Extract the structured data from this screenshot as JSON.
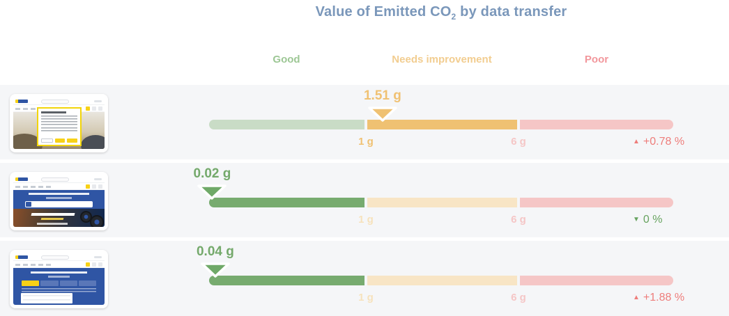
{
  "title": {
    "text_before_sub": "Value of Emitted CO",
    "sub": "2",
    "text_after_sub": " by data transfer"
  },
  "bands": {
    "good": "Good",
    "needs_improvement": "Needs improvement",
    "poor": "Poor"
  },
  "colors": {
    "title": "#7a97ba",
    "band_good_label": "#9dc795",
    "band_needs_label": "#f2cd90",
    "band_poor_label": "#f2979c",
    "good_active": "#77ab6f",
    "good_muted": "#c9dcc6",
    "needs_active": "#efc172",
    "needs_muted": "#f8e5c5",
    "poor_muted": "#f5c6c6",
    "change_up_red": "#ee7d7b",
    "change_down_green": "#67a35f",
    "row_background": "#f5f6f8"
  },
  "chart_data": {
    "type": "bullet",
    "title": "Value of Emitted CO2 by data transfer",
    "unit": "g",
    "bands": [
      {
        "name": "Good",
        "range_g": [
          0,
          1
        ]
      },
      {
        "name": "Needs improvement",
        "range_g": [
          1,
          6
        ]
      },
      {
        "name": "Poor",
        "range_g": [
          6,
          null
        ]
      }
    ],
    "scale": {
      "good_max": 1,
      "poor_min": 6
    },
    "tick_labels": {
      "low": "1 g",
      "high": "6 g"
    },
    "rows": [
      {
        "thumbnail": "michelin-page-with-cookie-consent-modal",
        "value_g": 1.51,
        "value_label": "1.51 g",
        "status": "needs_improvement",
        "change": {
          "direction": "up",
          "arrow": "▲",
          "label": "+0.78 %",
          "color": "red"
        }
      },
      {
        "thumbnail": "michelin-homepage-hero",
        "value_g": 0.02,
        "value_label": "0.02 g",
        "status": "good",
        "change": {
          "direction": "down",
          "arrow": "▼",
          "label": "0 %",
          "color": "green"
        }
      },
      {
        "thumbnail": "michelin-tire-selector-page",
        "value_g": 0.04,
        "value_label": "0.04 g",
        "status": "good",
        "change": {
          "direction": "up",
          "arrow": "▲",
          "label": "+1.88 %",
          "color": "red"
        }
      }
    ]
  }
}
